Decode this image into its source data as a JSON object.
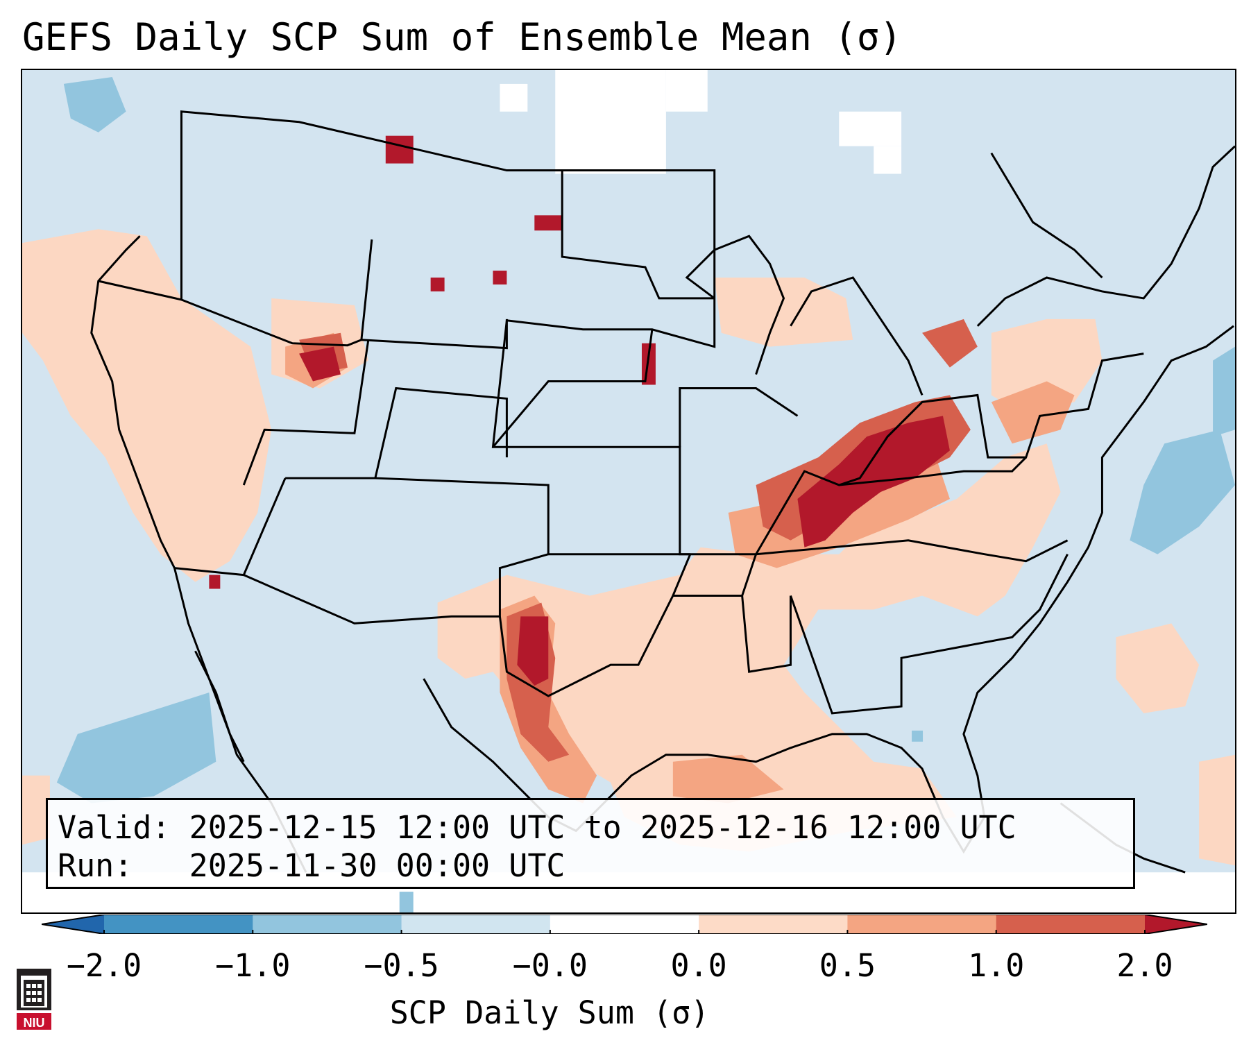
{
  "title": "GEFS Daily SCP Sum of Ensemble Mean (σ)",
  "info": {
    "valid_label": "Valid:",
    "valid_value": "2025-12-15 12:00 UTC to 2025-12-16 12:00 UTC",
    "run_label": "Run:",
    "run_value": "2025-11-30 00:00 UTC"
  },
  "colorbar": {
    "label": "SCP Daily Sum (σ)",
    "ticks": [
      "−2.0",
      "−1.0",
      "−0.5",
      "−0.0",
      "0.0",
      "0.5",
      "1.0",
      "2.0"
    ],
    "bins": [
      {
        "range": "< -2.0",
        "color": "#2166ac"
      },
      {
        "range": "-2.0 to -1.0",
        "color": "#4393c3"
      },
      {
        "range": "-1.0 to -0.5",
        "color": "#92c5de"
      },
      {
        "range": "-0.5 to -0.0",
        "color": "#d1e5f0"
      },
      {
        "range": "-0.0 to 0.0",
        "color": "#ffffff"
      },
      {
        "range": "0.0 to 0.5",
        "color": "#fddbc7"
      },
      {
        "range": "0.5 to 1.0",
        "color": "#f4a582"
      },
      {
        "range": "1.0 to 2.0",
        "color": "#d6604d"
      },
      {
        "range": "> 2.0",
        "color": "#b2182b"
      }
    ]
  },
  "map": {
    "region": "Contiguous United States",
    "colors": {
      "background": "#d3e4f0",
      "light_pos": "#fcd7c2",
      "mid_pos": "#f4a582",
      "high_pos": "#d6604d",
      "max_pos": "#b2182b",
      "mid_neg": "#92c5de",
      "white": "#ffffff"
    }
  },
  "logo": {
    "text": "NIU",
    "color": "#c8102e"
  }
}
